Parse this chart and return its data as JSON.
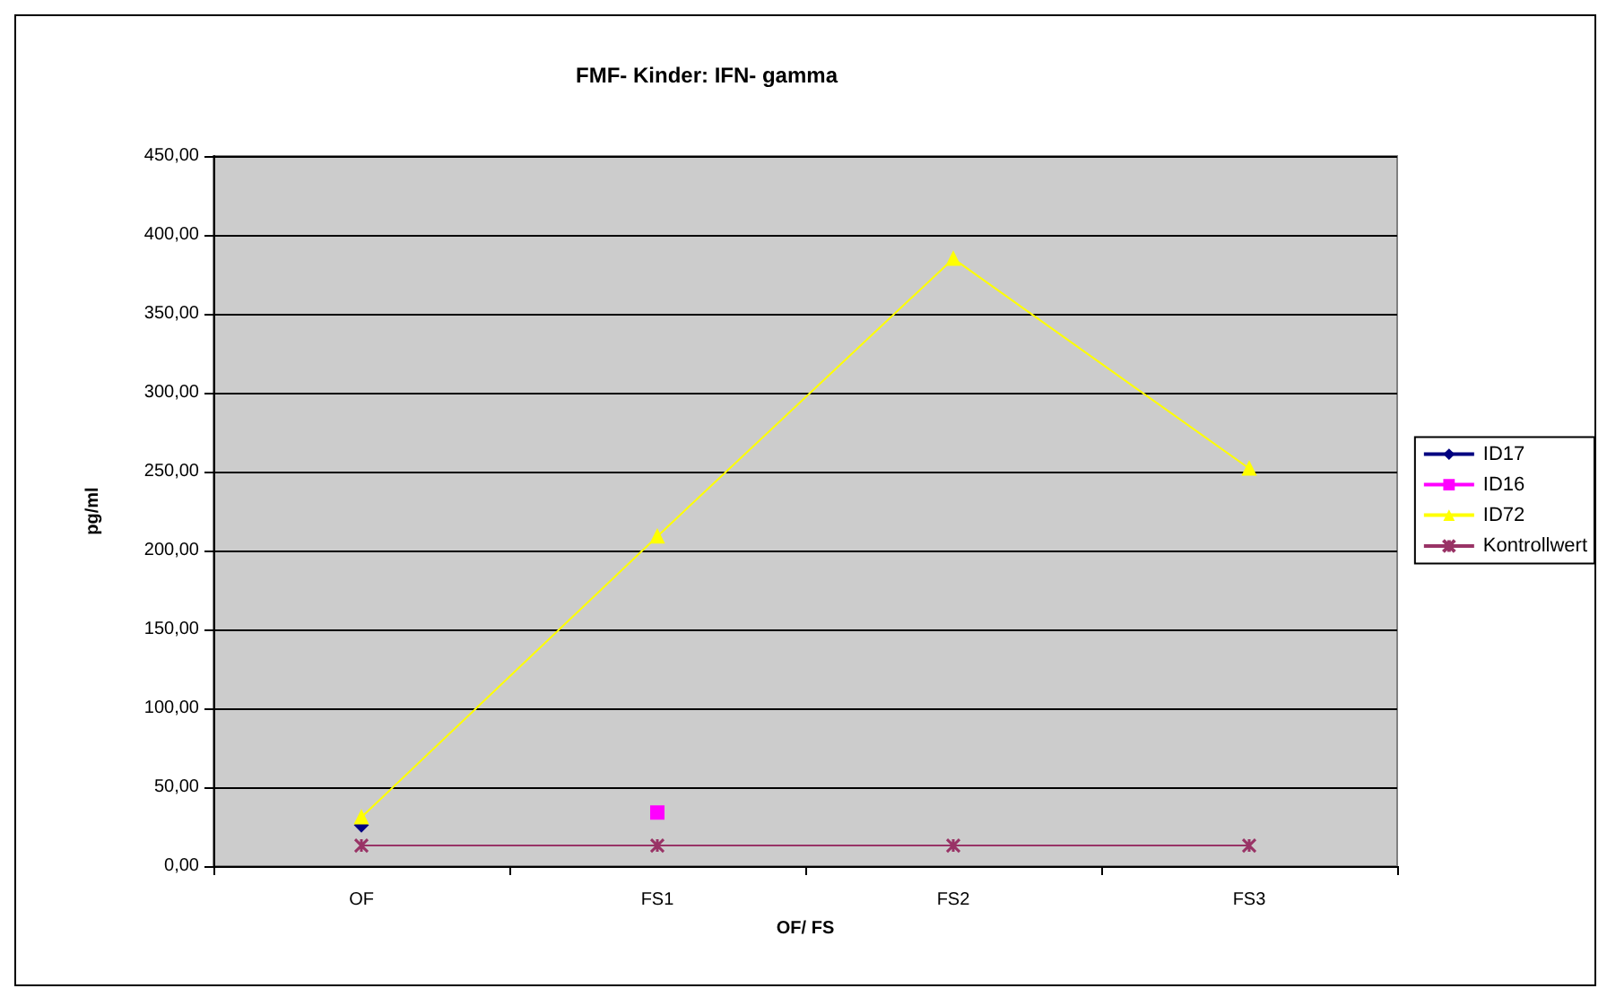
{
  "chart_data": {
    "type": "line",
    "title": "FMF- Kinder: IFN- gamma",
    "xlabel": "OF/ FS",
    "ylabel": "pg/ml",
    "categories": [
      "OF",
      "FS1",
      "FS2",
      "FS3"
    ],
    "series": [
      {
        "name": "ID17",
        "color": "#000080",
        "marker": "diamond",
        "values": [
          26,
          null,
          null,
          null
        ]
      },
      {
        "name": "ID16",
        "color": "#ff00ff",
        "marker": "square",
        "values": [
          null,
          34,
          null,
          null
        ]
      },
      {
        "name": "ID72",
        "color": "#ffff00",
        "marker": "triangle",
        "values": [
          31,
          209,
          385,
          252
        ]
      },
      {
        "name": "Kontrollwert",
        "color": "#993366",
        "marker": "cross",
        "values": [
          13,
          13,
          13,
          13
        ]
      }
    ],
    "ylim": [
      0,
      450
    ],
    "yticks": [
      {
        "value": 0,
        "label": "0,00"
      },
      {
        "value": 50,
        "label": "50,00"
      },
      {
        "value": 100,
        "label": "100,00"
      },
      {
        "value": 150,
        "label": "150,00"
      },
      {
        "value": 200,
        "label": "200,00"
      },
      {
        "value": 250,
        "label": "250,00"
      },
      {
        "value": 300,
        "label": "300,00"
      },
      {
        "value": 350,
        "label": "350,00"
      },
      {
        "value": 400,
        "label": "400,00"
      },
      {
        "value": 450,
        "label": "450,00"
      }
    ],
    "grid": "y",
    "legend": "right"
  }
}
